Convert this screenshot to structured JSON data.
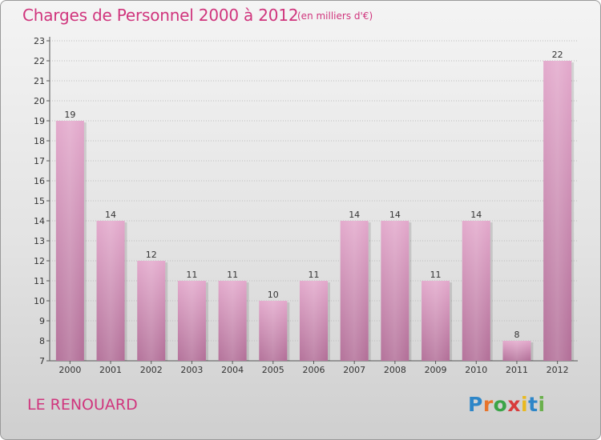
{
  "header": {
    "title": "Charges de Personnel 2000 à 2012",
    "subtitle": "(en milliers d'€)"
  },
  "footer": {
    "commune": "LE RENOUARD",
    "logo_letters": [
      "P",
      "r",
      "o",
      "x",
      "i",
      "t",
      "i"
    ],
    "logo_colors": [
      "#2e86c8",
      "#e8742a",
      "#3aa447",
      "#d83b3b",
      "#e9b920",
      "#2e86c8",
      "#6ab04c"
    ]
  },
  "colors": {
    "text": "#d0357d",
    "bar_top": "#e2a6ca",
    "bar_bottom": "#b06b95"
  },
  "chart_data": {
    "type": "bar",
    "title": "Charges de Personnel 2000 à 2012",
    "subtitle": "(en milliers d'€)",
    "categories": [
      "2000",
      "2001",
      "2002",
      "2003",
      "2004",
      "2005",
      "2006",
      "2007",
      "2008",
      "2009",
      "2010",
      "2011",
      "2012"
    ],
    "values": [
      19,
      14,
      12,
      11,
      11,
      10,
      11,
      14,
      14,
      11,
      14,
      8,
      22
    ],
    "ylim": [
      7,
      23
    ],
    "yticks": [
      7,
      8,
      9,
      10,
      11,
      12,
      13,
      14,
      15,
      16,
      17,
      18,
      19,
      20,
      21,
      22,
      23
    ],
    "grid": true,
    "legend": "none"
  }
}
